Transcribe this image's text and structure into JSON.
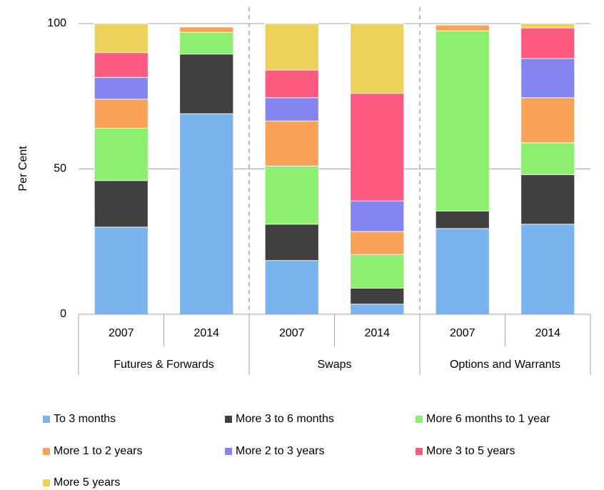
{
  "chart_data": {
    "type": "stacked_bar",
    "y_label": "Per Cent",
    "groups": [
      "Futures & Forwards",
      "Swaps",
      "Options and Warrants"
    ],
    "categories": [
      "2007",
      "2014",
      "2007",
      "2014",
      "2007",
      "2014"
    ],
    "series": [
      {
        "name": "To 3 months",
        "color": "#7ab4ee",
        "values": [
          30,
          69,
          18.5,
          3.5,
          29.5,
          31
        ]
      },
      {
        "name": "More 3 to 6 months",
        "color": "#404040",
        "values": [
          16,
          20.5,
          12.5,
          5.5,
          6,
          17
        ]
      },
      {
        "name": "More 6 months to 1 year",
        "color": "#8cef6f",
        "values": [
          18,
          7.5,
          20,
          11.5,
          62,
          11
        ]
      },
      {
        "name": "More 1 to 2 years",
        "color": "#f9a359",
        "values": [
          10,
          1.8,
          15.5,
          8,
          2,
          15.5
        ]
      },
      {
        "name": "More 2 to 3 years",
        "color": "#8585f0",
        "values": [
          7.5,
          0,
          8,
          10.5,
          0,
          13.5
        ]
      },
      {
        "name": "More 3 to 5 years",
        "color": "#fd5a81",
        "values": [
          8.5,
          0,
          9.5,
          37,
          0,
          10.5
        ]
      },
      {
        "name": "More 5 years",
        "color": "#ecd25a",
        "values": [
          10,
          0,
          16,
          24,
          0,
          1.5
        ]
      }
    ],
    "ylim": [
      0,
      100
    ],
    "yticks": [
      0,
      50,
      100
    ],
    "grid": true,
    "legend": "bottom"
  }
}
